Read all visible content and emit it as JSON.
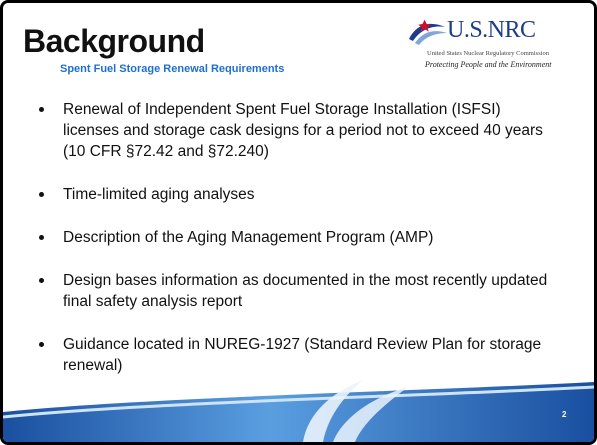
{
  "header": {
    "title": "Background",
    "subtitle": "Spent Fuel Storage Renewal Requirements",
    "logo": {
      "name": "U.S.NRC",
      "agency": "United States Nuclear Regulatory Commission",
      "tagline": "Protecting People and the Environment"
    }
  },
  "bullets": [
    "Renewal of Independent Spent Fuel Storage Installation (ISFSI) licenses and storage cask designs for a period not to exceed 40 years (10 CFR §72.42 and §72.240)",
    "Time-limited aging analyses",
    "Description of the Aging Management Program (AMP)",
    "Design bases information as documented in the most recently updated final safety analysis report",
    "Guidance located in NUREG-1927 (Standard Review Plan for storage renewal)"
  ],
  "page_number": "2"
}
